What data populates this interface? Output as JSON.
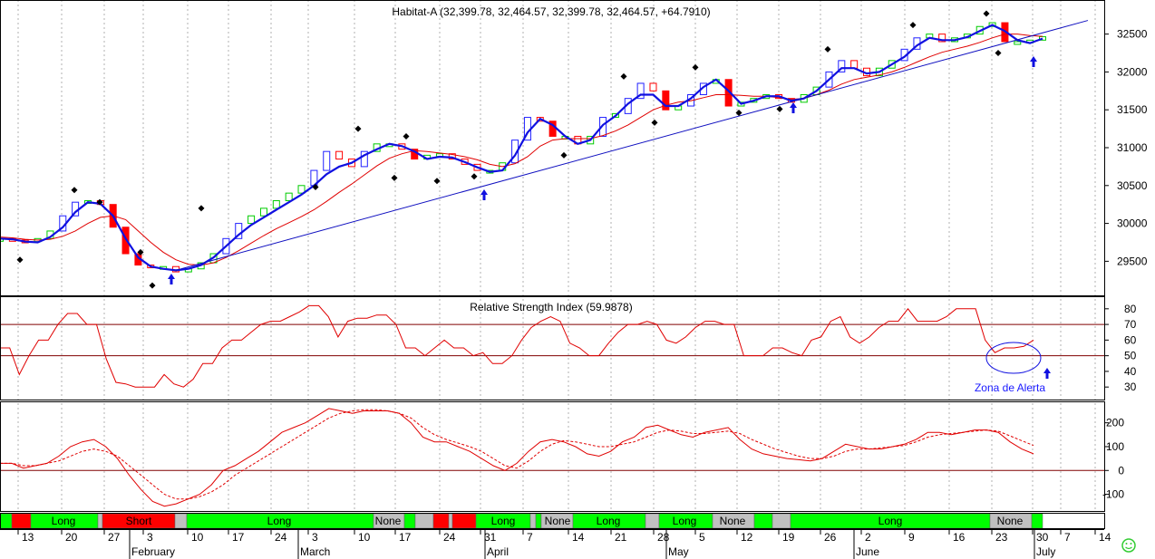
{
  "chart_data": [
    {
      "type": "candlestick",
      "title": "Habitat-A (32,399.78, 32,464.57, 32,399.78, 32,464.57, +64.7910)",
      "ylim": [
        29050,
        32950
      ],
      "y_ticks": [
        29500,
        30000,
        30500,
        31000,
        31500,
        32000,
        32500
      ],
      "x_labels_top_row": [
        "13",
        "20",
        "27",
        "3",
        "10",
        "17",
        "24",
        "3",
        "10",
        "17",
        "24",
        "31",
        "7",
        "14",
        "21",
        "28",
        "5",
        "12",
        "19",
        "26",
        "2",
        "9",
        "16",
        "23",
        "30",
        "7",
        "14"
      ],
      "x_labels_bottom_row": [
        "February",
        "March",
        "April",
        "May",
        "June",
        "July"
      ],
      "series": [
        {
          "style": "price",
          "values": [
            29800,
            29780,
            29760,
            29800,
            29900,
            30100,
            30280,
            30300,
            30250,
            29950,
            29600,
            29450,
            29420,
            29430,
            29360,
            29400,
            29480,
            29600,
            29800,
            30000,
            30100,
            30200,
            30300,
            30400,
            30500,
            30700,
            30950,
            30850,
            30750,
            30950,
            31050,
            31050,
            30980,
            30850,
            30900,
            30920,
            30850,
            30780,
            30700,
            30700,
            30800,
            31100,
            31400,
            31350,
            31150,
            31150,
            31050,
            31150,
            31400,
            31450,
            31650,
            31850,
            31750,
            31500,
            31550,
            31700,
            31850,
            31900,
            31550,
            31600,
            31650,
            31700,
            31650,
            31600,
            31700,
            31800,
            32000,
            32150,
            32050,
            31950,
            32050,
            32150,
            32300,
            32450,
            32500,
            32400,
            32450,
            32500,
            32600,
            32650,
            32400,
            32400,
            32420,
            32465
          ]
        },
        {
          "style": "short-ma",
          "values": [
            29800,
            29790,
            29760,
            29750,
            29820,
            29950,
            30150,
            30280,
            30260,
            30100,
            29800,
            29550,
            29430,
            29400,
            29380,
            29400,
            29450,
            29550,
            29700,
            29850,
            29980,
            30080,
            30180,
            30280,
            30380,
            30500,
            30650,
            30750,
            30800,
            30900,
            30980,
            31050,
            31020,
            30950,
            30850,
            30880,
            30870,
            30810,
            30740,
            30680,
            30700,
            30900,
            31200,
            31380,
            31300,
            31150,
            31050,
            31100,
            31300,
            31420,
            31580,
            31700,
            31700,
            31550,
            31550,
            31650,
            31800,
            31900,
            31750,
            31580,
            31620,
            31680,
            31680,
            31620,
            31650,
            31750,
            31900,
            32050,
            32050,
            31980,
            32000,
            32100,
            32200,
            32350,
            32450,
            32420,
            32420,
            32460,
            32540,
            32620,
            32540,
            32420,
            32380,
            32440
          ]
        },
        {
          "style": "long-ma",
          "values": [
            29820,
            29810,
            29790,
            29780,
            29790,
            29830,
            29900,
            30000,
            30080,
            30100,
            30050,
            29900,
            29750,
            29620,
            29520,
            29460,
            29450,
            29480,
            29550,
            29640,
            29740,
            29840,
            29930,
            30010,
            30090,
            30180,
            30290,
            30410,
            30520,
            30640,
            30760,
            30860,
            30920,
            30960,
            30950,
            30930,
            30910,
            30880,
            30840,
            30780,
            30750,
            30790,
            30880,
            31020,
            31100,
            31120,
            31120,
            31120,
            31160,
            31220,
            31300,
            31400,
            31500,
            31560,
            31600,
            31620,
            31660,
            31700,
            31700,
            31690,
            31680,
            31680,
            31660,
            31640,
            31650,
            31700,
            31760,
            31840,
            31900,
            31930,
            31960,
            32000,
            32060,
            32130,
            32200,
            32260,
            32300,
            32340,
            32390,
            32450,
            32500,
            32500,
            32480,
            32470
          ]
        }
      ]
    },
    {
      "type": "line",
      "title": "Relative Strength Index (59.9878)",
      "ylim": [
        22,
        88
      ],
      "y_ticks": [
        30,
        40,
        50,
        60,
        70,
        80
      ],
      "annotation": "Zona de Alerta",
      "series": [
        {
          "values": [
            55,
            55,
            38,
            50,
            60,
            60,
            70,
            77,
            77,
            70,
            70,
            48,
            33,
            32,
            30,
            30,
            30,
            38,
            32,
            30,
            35,
            45,
            45,
            55,
            60,
            60,
            65,
            70,
            72,
            72,
            75,
            78,
            82,
            82,
            75,
            62,
            72,
            74,
            74,
            76,
            76,
            70,
            55,
            55,
            50,
            55,
            60,
            55,
            55,
            50,
            52,
            45,
            45,
            50,
            60,
            68,
            72,
            75,
            72,
            58,
            55,
            50,
            50,
            58,
            65,
            70,
            70,
            72,
            70,
            60,
            58,
            62,
            68,
            72,
            72,
            70,
            70,
            50,
            50,
            50,
            55,
            55,
            52,
            50,
            60,
            62,
            72,
            75,
            62,
            58,
            62,
            68,
            72,
            72,
            80,
            72,
            72,
            72,
            75,
            80,
            80,
            80,
            60,
            52,
            55,
            55,
            56,
            60
          ]
        }
      ]
    },
    {
      "type": "line",
      "title": "",
      "ylim": [
        -170,
        290
      ],
      "y_ticks": [
        -100,
        0,
        100,
        200
      ],
      "series": [
        {
          "style": "solid",
          "values": [
            30,
            30,
            10,
            20,
            30,
            60,
            100,
            120,
            130,
            100,
            50,
            -20,
            -80,
            -130,
            -150,
            -140,
            -120,
            -100,
            -60,
            0,
            20,
            50,
            80,
            120,
            160,
            180,
            200,
            230,
            260,
            250,
            240,
            250,
            250,
            250,
            240,
            200,
            140,
            120,
            120,
            100,
            80,
            50,
            20,
            0,
            30,
            80,
            120,
            130,
            120,
            100,
            70,
            60,
            80,
            120,
            140,
            180,
            190,
            170,
            150,
            140,
            160,
            170,
            180,
            130,
            90,
            70,
            60,
            50,
            45,
            40,
            50,
            80,
            110,
            100,
            90,
            90,
            100,
            110,
            130,
            160,
            160,
            150,
            160,
            170,
            170,
            160,
            120,
            90,
            70
          ]
        },
        {
          "style": "dashed",
          "values": [
            30,
            30,
            20,
            20,
            30,
            40,
            60,
            80,
            90,
            80,
            60,
            20,
            -20,
            -60,
            -100,
            -120,
            -120,
            -110,
            -90,
            -60,
            -20,
            10,
            40,
            70,
            100,
            130,
            160,
            190,
            220,
            240,
            250,
            255,
            255,
            250,
            240,
            220,
            180,
            150,
            130,
            115,
            100,
            80,
            50,
            20,
            10,
            40,
            80,
            110,
            125,
            120,
            110,
            100,
            100,
            110,
            120,
            140,
            160,
            170,
            165,
            155,
            155,
            160,
            165,
            155,
            130,
            110,
            90,
            75,
            60,
            50,
            50,
            60,
            80,
            90,
            90,
            95,
            100,
            105,
            120,
            140,
            150,
            155,
            160,
            165,
            170,
            165,
            145,
            125,
            105
          ]
        }
      ]
    },
    {
      "type": "band",
      "labels": [
        "Long",
        "Short",
        "Long",
        "None",
        "Long",
        "None",
        "Long",
        "Long",
        "None",
        "Long",
        "None"
      ],
      "colors": {
        "long": "#00ff00",
        "short": "#ff0000",
        "none": "#c0c0c0"
      }
    }
  ]
}
